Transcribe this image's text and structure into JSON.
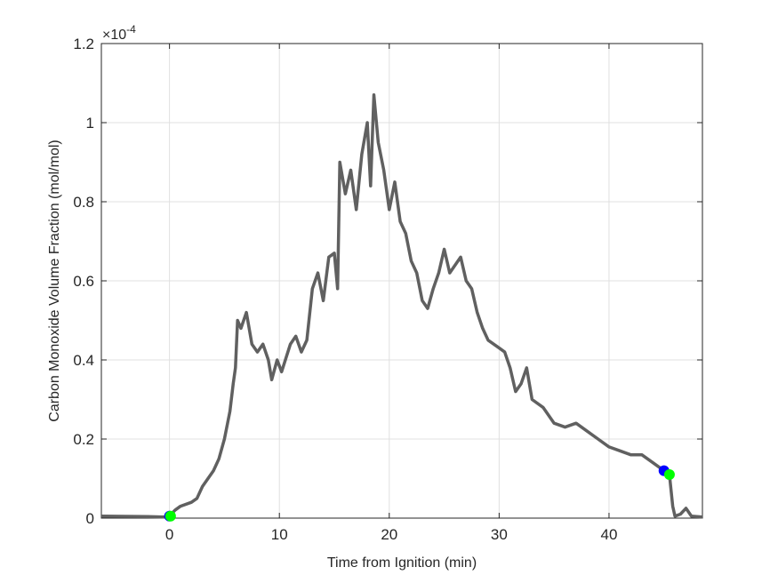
{
  "chart_data": {
    "type": "line",
    "xlabel": "Time from Ignition (min)",
    "ylabel": "Carbon Monoxide Volume Fraction (mol/mol)",
    "exponent_base": "×10",
    "exponent": "-4",
    "xlim": [
      -6.2,
      48.5
    ],
    "ylim": [
      0,
      1.2
    ],
    "xticks": [
      0,
      10,
      20,
      30,
      40
    ],
    "yticks": [
      0,
      0.2,
      0.4,
      0.6,
      0.8,
      1,
      1.2
    ],
    "grid": true,
    "series": [
      {
        "color": "#606060",
        "marker": "line",
        "x": [
          -6.2,
          -2,
          -0.5,
          0,
          0.5,
          1,
          2,
          2.5,
          3,
          4,
          4.5,
          5,
          5.5,
          5.8,
          6,
          6.2,
          6.5,
          7,
          7.5,
          8,
          8.5,
          9,
          9.3,
          9.8,
          10.2,
          11,
          11.5,
          12,
          12.5,
          13,
          13.5,
          14,
          14.5,
          15,
          15.3,
          15.5,
          16,
          16.5,
          17,
          17.5,
          18,
          18.3,
          18.6,
          19,
          19.5,
          20,
          20.5,
          21,
          21.5,
          22,
          22.5,
          23,
          23.5,
          24,
          24.5,
          25,
          25.5,
          26,
          26.5,
          27,
          27.5,
          28,
          28.5,
          29,
          30,
          30.5,
          31,
          31.5,
          32,
          32.5,
          33,
          34,
          35,
          36,
          37,
          38,
          39,
          40,
          41,
          42,
          43,
          44,
          45,
          45.5,
          45.8,
          46,
          46.5,
          47,
          47.5,
          48.5
        ],
        "values": [
          0.005,
          0.004,
          0.003,
          0.005,
          0.02,
          0.03,
          0.04,
          0.05,
          0.08,
          0.12,
          0.15,
          0.2,
          0.27,
          0.34,
          0.38,
          0.5,
          0.48,
          0.52,
          0.44,
          0.42,
          0.44,
          0.4,
          0.35,
          0.4,
          0.37,
          0.44,
          0.46,
          0.42,
          0.45,
          0.58,
          0.62,
          0.55,
          0.66,
          0.67,
          0.58,
          0.9,
          0.82,
          0.88,
          0.78,
          0.92,
          1.0,
          0.84,
          1.07,
          0.95,
          0.88,
          0.78,
          0.85,
          0.75,
          0.72,
          0.65,
          0.62,
          0.55,
          0.53,
          0.58,
          0.62,
          0.68,
          0.62,
          0.64,
          0.66,
          0.6,
          0.58,
          0.52,
          0.48,
          0.45,
          0.43,
          0.42,
          0.38,
          0.32,
          0.34,
          0.38,
          0.3,
          0.28,
          0.24,
          0.23,
          0.24,
          0.22,
          0.2,
          0.18,
          0.17,
          0.16,
          0.16,
          0.14,
          0.12,
          0.11,
          0.03,
          0.005,
          0.01,
          0.025,
          0.005,
          0.003
        ]
      },
      {
        "color": "#0000ff",
        "marker": "dot",
        "x": [
          0,
          45
        ],
        "values": [
          0.005,
          0.12
        ]
      },
      {
        "color": "#00ff00",
        "marker": "dot",
        "x": [
          0.1,
          45.5
        ],
        "values": [
          0.005,
          0.11
        ]
      }
    ]
  }
}
